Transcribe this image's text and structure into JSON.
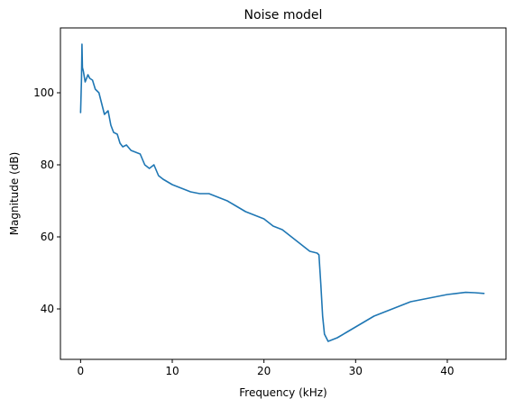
{
  "chart_data": {
    "type": "line",
    "title": "Noise model",
    "xlabel": "Frequency (kHz)",
    "ylabel": "Magnitude (dB)",
    "xlim": [
      -2.2,
      46.4
    ],
    "ylim": [
      26.0,
      118.0
    ],
    "xticks": [
      0,
      10,
      20,
      30,
      40
    ],
    "yticks": [
      40,
      60,
      80,
      100
    ],
    "grid": false,
    "line_color": "#1f77b4",
    "series": [
      {
        "x": [
          0.0,
          0.1,
          0.15,
          0.2,
          0.3,
          0.5,
          0.8,
          1.0,
          1.3,
          1.6,
          2.0,
          2.3,
          2.6,
          3.0,
          3.3,
          3.6,
          4.0,
          4.3,
          4.6,
          5.0,
          5.5,
          6.0,
          6.5,
          7.0,
          7.5,
          8.0,
          8.5,
          9.0,
          10.0,
          11.0,
          12.0,
          13.0,
          14.0,
          15.0,
          16.0,
          17.0,
          18.0,
          19.0,
          20.0,
          21.0,
          22.0,
          23.0,
          24.0,
          25.0,
          25.8,
          26.0,
          26.2,
          26.4,
          26.6,
          27.0,
          27.5,
          28.0,
          29.0,
          30.0,
          31.0,
          32.0,
          33.0,
          34.0,
          35.0,
          36.0,
          37.0,
          38.0,
          39.0,
          40.0,
          41.0,
          42.0,
          43.0,
          44.0
        ],
        "y": [
          94.5,
          104.0,
          113.5,
          107.0,
          106.0,
          103.0,
          105.0,
          104.0,
          103.5,
          101.0,
          100.0,
          97.0,
          94.0,
          95.0,
          91.0,
          89.0,
          88.5,
          86.0,
          85.0,
          85.5,
          84.0,
          83.5,
          83.0,
          80.0,
          79.0,
          80.0,
          77.0,
          76.0,
          74.5,
          73.5,
          72.5,
          72.0,
          72.0,
          71.0,
          70.0,
          68.5,
          67.0,
          66.0,
          65.0,
          63.0,
          62.0,
          60.0,
          58.0,
          56.0,
          55.5,
          55.0,
          47.0,
          38.0,
          33.0,
          31.0,
          31.5,
          32.0,
          33.5,
          35.0,
          36.5,
          38.0,
          39.0,
          40.0,
          41.0,
          42.0,
          42.5,
          43.0,
          43.5,
          44.0,
          44.3,
          44.6,
          44.5,
          44.3
        ]
      }
    ]
  }
}
